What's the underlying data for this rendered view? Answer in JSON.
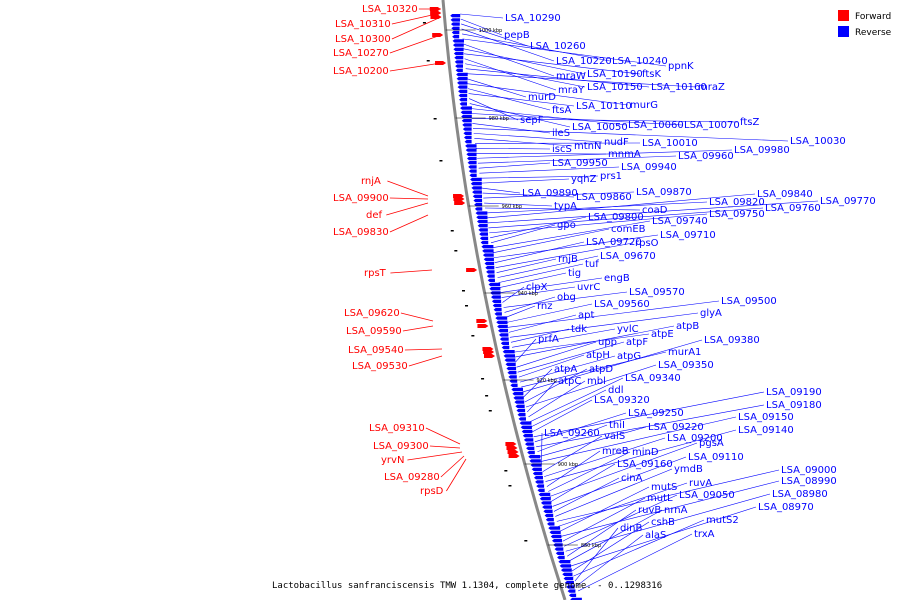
{
  "caption": "Lactobacillus sanfranciscensis TMW 1.1304, complete genome. - 0..1298316",
  "legend": [
    {
      "label": "Forward",
      "color": "#ff0000"
    },
    {
      "label": "Reverse",
      "color": "#0000ff"
    }
  ],
  "colors": {
    "forward": "#ff0000",
    "reverse": "#0000ff",
    "backbone": "#888888"
  },
  "ticks": [
    "1000 kbp",
    "980 kbp",
    "960 kbp",
    "940 kbp",
    "920 kbp",
    "900 kbp",
    "880 kbp"
  ],
  "forward_labels": [
    "LSA_10320",
    "LSA_10310",
    "LSA_10300",
    "LSA_10270",
    "LSA_10200",
    "rnjA",
    "LSA_09900",
    "def",
    "LSA_09830",
    "rpsT",
    "LSA_09620",
    "LSA_09590",
    "LSA_09540",
    "LSA_09530",
    "LSA_09310",
    "LSA_09300",
    "yrvN",
    "LSA_09280",
    "rpsD"
  ],
  "reverse_labels": [
    "LSA_10290",
    "pepB",
    "LSA_10260",
    "LSA_10220",
    "LSA_10240",
    "ppnK",
    "mraW",
    "LSA_10190",
    "ftsK",
    "mraY",
    "LSA_10150",
    "LSA_10160",
    "mraZ",
    "murD",
    "murG",
    "ftsA",
    "LSA_10110",
    "sepF",
    "LSA_10050",
    "LSA_10060",
    "LSA_10070",
    "ftsZ",
    "ileS",
    "LSA_10030",
    "nudF",
    "mtnN",
    "LSA_10010",
    "iscS",
    "mnmA",
    "LSA_09980",
    "LSA_09960",
    "LSA_09950",
    "LSA_09940",
    "prs1",
    "yqhZ",
    "LSA_09890",
    "LSA_09860",
    "LSA_09870",
    "typA",
    "coaD",
    "LSA_09820",
    "LSA_09840",
    "LSA_09770",
    "LSA_09760",
    "LSA_09750",
    "LSA_09800",
    "gpo",
    "LSA_09740",
    "comEB",
    "LSA_09710",
    "LSA_09720",
    "rpsO",
    "rnjB",
    "LSA_09670",
    "tuf",
    "tig",
    "engB",
    "uvrC",
    "clpX",
    "LSA_09570",
    "obg",
    "rnz",
    "LSA_09560",
    "LSA_09500",
    "apt",
    "glyA",
    "tdk",
    "yvlC",
    "atpE",
    "atpB",
    "prfA",
    "upp",
    "atpF",
    "atpH",
    "atpG",
    "murA1",
    "LSA_09380",
    "atpA",
    "atpD",
    "LSA_09350",
    "atpC",
    "mbl",
    "LSA_09340",
    "ddl",
    "LSA_09320",
    "LSA_09190",
    "LSA_09250",
    "LSA_09180",
    "thiI",
    "LSA_09220",
    "LSA_09150",
    "LSA_09260",
    "valS",
    "LSA_09200",
    "LSA_09140",
    "mreB",
    "minD",
    "pgsA",
    "LSA_09160",
    "LSA_09110",
    "cinA",
    "ymdB",
    "LSA_09000",
    "ruvA",
    "mutS",
    "LSA_08990",
    "mutL",
    "LSA_09050",
    "LSA_08980",
    "ruvB",
    "nrnA",
    "LSA_08970",
    "cshB",
    "mutS2",
    "dinB",
    "alaS",
    "trxA"
  ]
}
